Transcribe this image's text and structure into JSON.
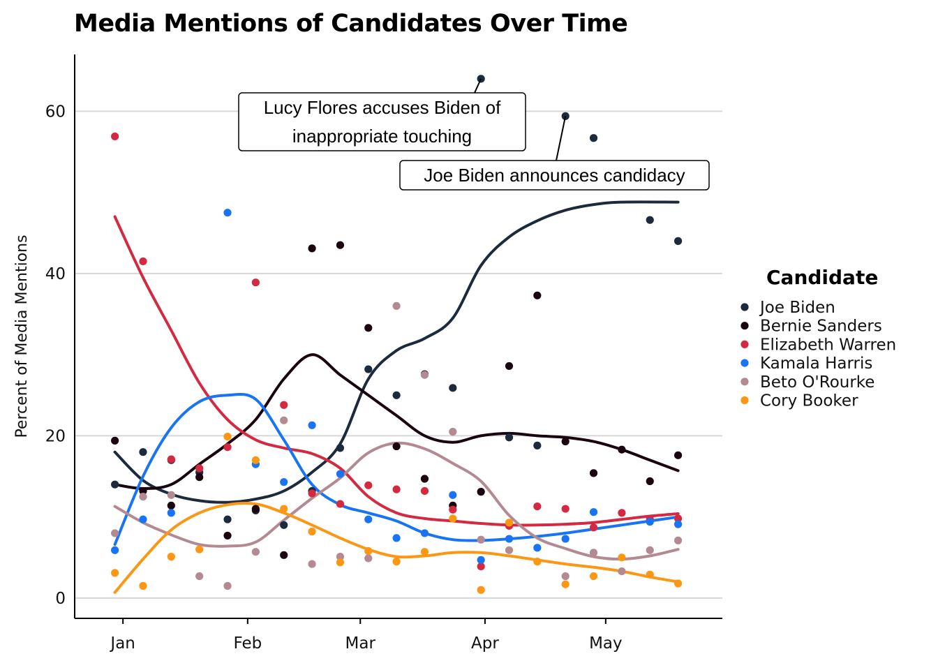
{
  "chart_data": {
    "type": "scatter",
    "title": "Media Mentions of Candidates Over Time",
    "ylabel": "Percent of Media Mentions",
    "xlabel": "",
    "ylim": [
      -2.5,
      67
    ],
    "xlim": [
      "2018-12-20",
      "2019-05-30"
    ],
    "grid": "horizontal",
    "legend_title": "Candidate",
    "legend_position": "right",
    "x_ticks": [
      {
        "label": "Jan",
        "date": "2019-01-01"
      },
      {
        "label": "Feb",
        "date": "2019-02-01"
      },
      {
        "label": "Mar",
        "date": "2019-03-01"
      },
      {
        "label": "Apr",
        "date": "2019-04-01"
      },
      {
        "label": "May",
        "date": "2019-05-01"
      }
    ],
    "y_ticks": [
      0,
      20,
      40,
      60
    ],
    "dates": [
      "2018-12-30",
      "2019-01-06",
      "2019-01-13",
      "2019-01-20",
      "2019-01-27",
      "2019-02-03",
      "2019-02-10",
      "2019-02-17",
      "2019-02-24",
      "2019-03-03",
      "2019-03-10",
      "2019-03-17",
      "2019-03-24",
      "2019-03-31",
      "2019-04-07",
      "2019-04-14",
      "2019-04-21",
      "2019-04-28",
      "2019-05-05",
      "2019-05-12",
      "2019-05-19"
    ],
    "series": [
      {
        "name": "Joe Biden",
        "color": "#1b2a3c",
        "points": [
          14.0,
          18.0,
          17.0,
          15.5,
          9.7,
          10.8,
          9.0,
          13.2,
          18.5,
          28.2,
          25.0,
          27.6,
          25.9,
          64.0,
          19.8,
          18.8,
          59.4,
          56.7,
          null,
          46.6,
          44.0
        ],
        "trend": [
          18.0,
          14.5,
          12.8,
          12.0,
          11.8,
          12.2,
          13.2,
          15.5,
          19.0,
          27.0,
          30.5,
          32.0,
          34.5,
          41.0,
          44.5,
          46.5,
          47.8,
          48.5,
          48.8,
          null,
          null
        ],
        "trend_end": {
          "date": "2019-05-19",
          "value": 48.8
        }
      },
      {
        "name": "Bernie Sanders",
        "color": "#1a0410",
        "points": [
          19.4,
          13.2,
          11.4,
          14.9,
          7.7,
          11.0,
          5.3,
          43.1,
          43.5,
          33.3,
          18.7,
          14.7,
          11.4,
          13.1,
          28.6,
          37.3,
          19.3,
          15.4,
          18.3,
          14.4,
          17.6
        ],
        "trend": [
          14.0,
          13.5,
          14.0,
          16.5,
          19.0,
          22.0,
          27.0,
          30.0,
          27.5,
          25.0,
          22.5,
          20.0,
          19.2,
          20.0,
          20.3,
          20.0,
          19.8,
          19.3,
          18.3,
          17.0,
          15.7
        ]
      },
      {
        "name": "Elizabeth Warren",
        "color": "#d42a41",
        "points": [
          56.9,
          41.5,
          17.1,
          16.0,
          18.6,
          38.9,
          23.8,
          12.9,
          11.6,
          13.9,
          13.4,
          13.2,
          10.9,
          3.9,
          8.9,
          11.3,
          11.0,
          8.7,
          10.5,
          9.7,
          9.8
        ],
        "trend": [
          47.0,
          39.5,
          33.0,
          26.5,
          22.0,
          19.5,
          18.5,
          17.8,
          16.0,
          12.5,
          10.5,
          9.8,
          9.5,
          9.2,
          9.0,
          9.0,
          9.1,
          9.3,
          9.7,
          10.1,
          10.4
        ]
      },
      {
        "name": "Kamala Harris",
        "color": "#1874f5",
        "points": [
          5.9,
          9.7,
          10.5,
          null,
          47.5,
          16.5,
          14.3,
          21.3,
          15.3,
          9.7,
          7.4,
          8.0,
          12.7,
          4.7,
          7.3,
          6.2,
          7.3,
          10.6,
          null,
          9.4,
          9.1
        ],
        "trend": [
          6.6,
          15.0,
          21.0,
          24.2,
          25.0,
          24.5,
          19.5,
          14.0,
          11.5,
          10.5,
          9.5,
          8.0,
          7.2,
          7.1,
          7.3,
          7.6,
          8.0,
          8.5,
          9.0,
          9.5,
          10.0
        ]
      },
      {
        "name": "Beto O'Rourke",
        "color": "#b48a92",
        "points": [
          8.0,
          12.5,
          12.7,
          2.7,
          1.5,
          5.7,
          21.9,
          4.2,
          5.1,
          4.9,
          36.0,
          27.5,
          20.5,
          7.2,
          5.9,
          null,
          2.7,
          5.6,
          3.3,
          5.9,
          7.1
        ],
        "trend": [
          11.3,
          9.3,
          7.8,
          6.6,
          6.4,
          6.9,
          9.6,
          12.3,
          14.8,
          17.9,
          19.1,
          18.4,
          16.6,
          14.4,
          10.2,
          7.4,
          6.1,
          5.1,
          4.8,
          5.2,
          6.0
        ]
      },
      {
        "name": "Cory Booker",
        "color": "#fb9714",
        "points": [
          3.1,
          1.5,
          5.1,
          6.0,
          19.9,
          17.0,
          11.0,
          8.2,
          4.4,
          5.8,
          4.5,
          5.7,
          9.8,
          1.0,
          9.3,
          4.5,
          1.7,
          2.7,
          5.0,
          2.9,
          1.8
        ],
        "trend": [
          0.7,
          4.8,
          8.4,
          10.5,
          11.5,
          11.6,
          10.5,
          9.0,
          7.4,
          6.0,
          5.1,
          5.2,
          5.6,
          5.6,
          5.2,
          4.7,
          4.2,
          3.8,
          3.3,
          2.6,
          2.0
        ]
      }
    ],
    "annotations": [
      {
        "text_lines": [
          "Lucy Flores accuses Biden of",
          "inappropriate touching"
        ],
        "date": "2019-03-31",
        "value": 64.0
      },
      {
        "text_lines": [
          "Joe Biden announces candidacy"
        ],
        "date": "2019-04-21",
        "value": 59.4
      }
    ]
  }
}
